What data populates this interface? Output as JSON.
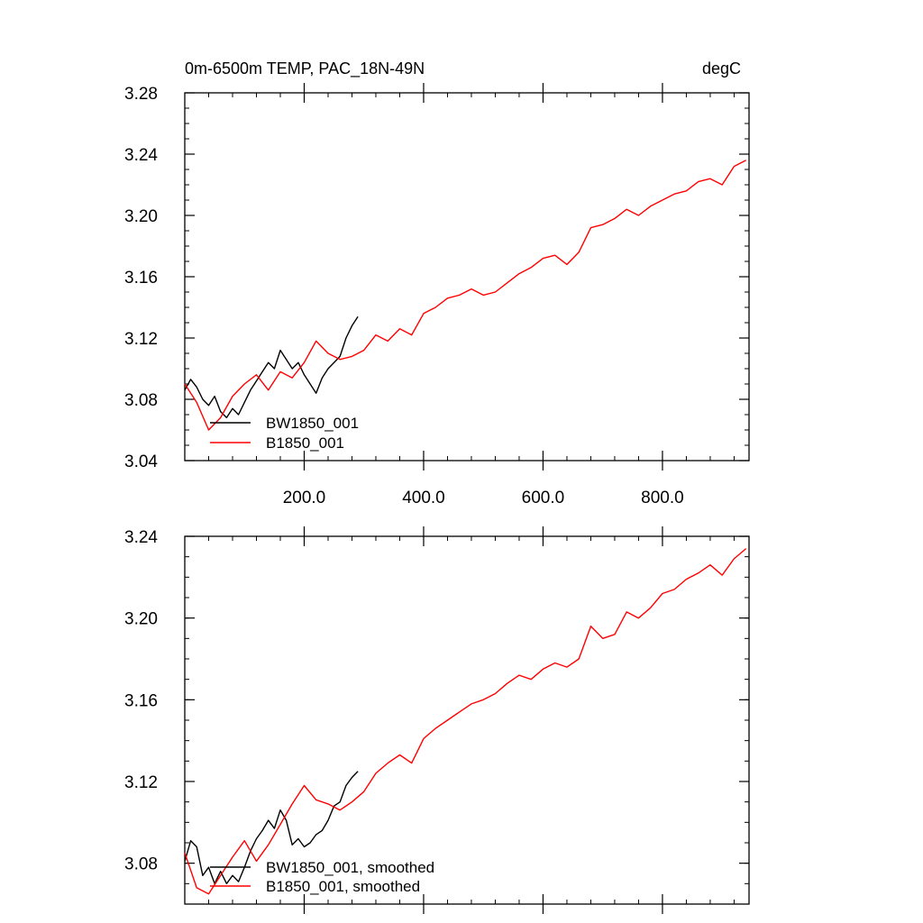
{
  "chart_data": [
    {
      "type": "line",
      "title": "0m-6500m TEMP, PAC_18N-49N",
      "units": "degC",
      "xlim": [
        0,
        945
      ],
      "ylim": [
        3.04,
        3.28
      ],
      "xticks": [
        200,
        400,
        600,
        800
      ],
      "xtick_labels": [
        "200.0",
        "400.0",
        "600.0",
        "800.0"
      ],
      "yticks": [
        3.04,
        3.08,
        3.12,
        3.16,
        3.2,
        3.24,
        3.28
      ],
      "ytick_labels": [
        "3.04",
        "3.08",
        "3.12",
        "3.16",
        "3.20",
        "3.24",
        "3.28"
      ],
      "legend_position": "bottom-left",
      "series": [
        {
          "name": "BW1850_001",
          "color": "#000000",
          "x": [
            0,
            10,
            20,
            30,
            40,
            50,
            60,
            70,
            80,
            90,
            100,
            110,
            120,
            130,
            140,
            150,
            160,
            170,
            180,
            190,
            200,
            210,
            220,
            230,
            240,
            250,
            260,
            270,
            280,
            290
          ],
          "y": [
            3.086,
            3.093,
            3.088,
            3.08,
            3.076,
            3.082,
            3.072,
            3.068,
            3.074,
            3.07,
            3.078,
            3.086,
            3.092,
            3.098,
            3.104,
            3.1,
            3.112,
            3.106,
            3.1,
            3.104,
            3.096,
            3.09,
            3.084,
            3.094,
            3.1,
            3.104,
            3.108,
            3.12,
            3.128,
            3.134
          ]
        },
        {
          "name": "B1850_001",
          "color": "#ff0000",
          "x": [
            0,
            20,
            40,
            60,
            80,
            100,
            120,
            140,
            160,
            180,
            200,
            220,
            240,
            260,
            280,
            300,
            320,
            340,
            360,
            380,
            400,
            420,
            440,
            460,
            480,
            500,
            520,
            540,
            560,
            580,
            600,
            620,
            640,
            660,
            680,
            700,
            720,
            740,
            760,
            780,
            800,
            820,
            840,
            860,
            880,
            900,
            920,
            940
          ],
          "y": [
            3.09,
            3.078,
            3.06,
            3.068,
            3.082,
            3.09,
            3.096,
            3.086,
            3.098,
            3.094,
            3.104,
            3.118,
            3.11,
            3.106,
            3.108,
            3.112,
            3.122,
            3.118,
            3.126,
            3.122,
            3.136,
            3.14,
            3.146,
            3.148,
            3.152,
            3.148,
            3.15,
            3.156,
            3.162,
            3.166,
            3.172,
            3.174,
            3.168,
            3.176,
            3.192,
            3.194,
            3.198,
            3.204,
            3.2,
            3.206,
            3.21,
            3.214,
            3.216,
            3.222,
            3.224,
            3.22,
            3.232,
            3.236
          ]
        }
      ]
    },
    {
      "type": "line",
      "title": "",
      "units": "",
      "xlim": [
        0,
        945
      ],
      "ylim": [
        3.06,
        3.24
      ],
      "xticks": [
        200,
        400,
        600,
        800
      ],
      "xtick_labels": [
        "",
        "",
        "",
        ""
      ],
      "yticks": [
        3.08,
        3.12,
        3.16,
        3.2,
        3.24
      ],
      "ytick_labels": [
        "3.08",
        "3.12",
        "3.16",
        "3.20",
        "3.24"
      ],
      "legend_position": "bottom-left",
      "series": [
        {
          "name": "BW1850_001, smoothed",
          "color": "#000000",
          "x": [
            0,
            10,
            20,
            30,
            40,
            50,
            60,
            70,
            80,
            90,
            100,
            110,
            120,
            130,
            140,
            150,
            160,
            170,
            180,
            190,
            200,
            210,
            220,
            230,
            240,
            250,
            260,
            270,
            280,
            290
          ],
          "y": [
            3.081,
            3.091,
            3.088,
            3.074,
            3.078,
            3.07,
            3.076,
            3.07,
            3.074,
            3.071,
            3.078,
            3.086,
            3.092,
            3.096,
            3.101,
            3.097,
            3.106,
            3.101,
            3.089,
            3.092,
            3.088,
            3.09,
            3.094,
            3.096,
            3.101,
            3.108,
            3.11,
            3.118,
            3.122,
            3.125
          ]
        },
        {
          "name": "B1850_001, smoothed",
          "color": "#ff0000",
          "x": [
            0,
            20,
            40,
            60,
            80,
            100,
            120,
            140,
            160,
            180,
            200,
            220,
            240,
            260,
            280,
            300,
            320,
            340,
            360,
            380,
            400,
            420,
            440,
            460,
            480,
            500,
            520,
            540,
            560,
            580,
            600,
            620,
            640,
            660,
            680,
            700,
            720,
            740,
            760,
            780,
            800,
            820,
            840,
            860,
            880,
            900,
            920,
            940
          ],
          "y": [
            3.085,
            3.068,
            3.065,
            3.074,
            3.083,
            3.091,
            3.081,
            3.089,
            3.099,
            3.109,
            3.118,
            3.111,
            3.109,
            3.106,
            3.11,
            3.115,
            3.124,
            3.129,
            3.133,
            3.129,
            3.141,
            3.146,
            3.15,
            3.154,
            3.158,
            3.16,
            3.163,
            3.168,
            3.172,
            3.17,
            3.175,
            3.178,
            3.176,
            3.18,
            3.196,
            3.19,
            3.192,
            3.203,
            3.2,
            3.205,
            3.212,
            3.214,
            3.219,
            3.222,
            3.226,
            3.221,
            3.229,
            3.234
          ]
        }
      ]
    }
  ]
}
